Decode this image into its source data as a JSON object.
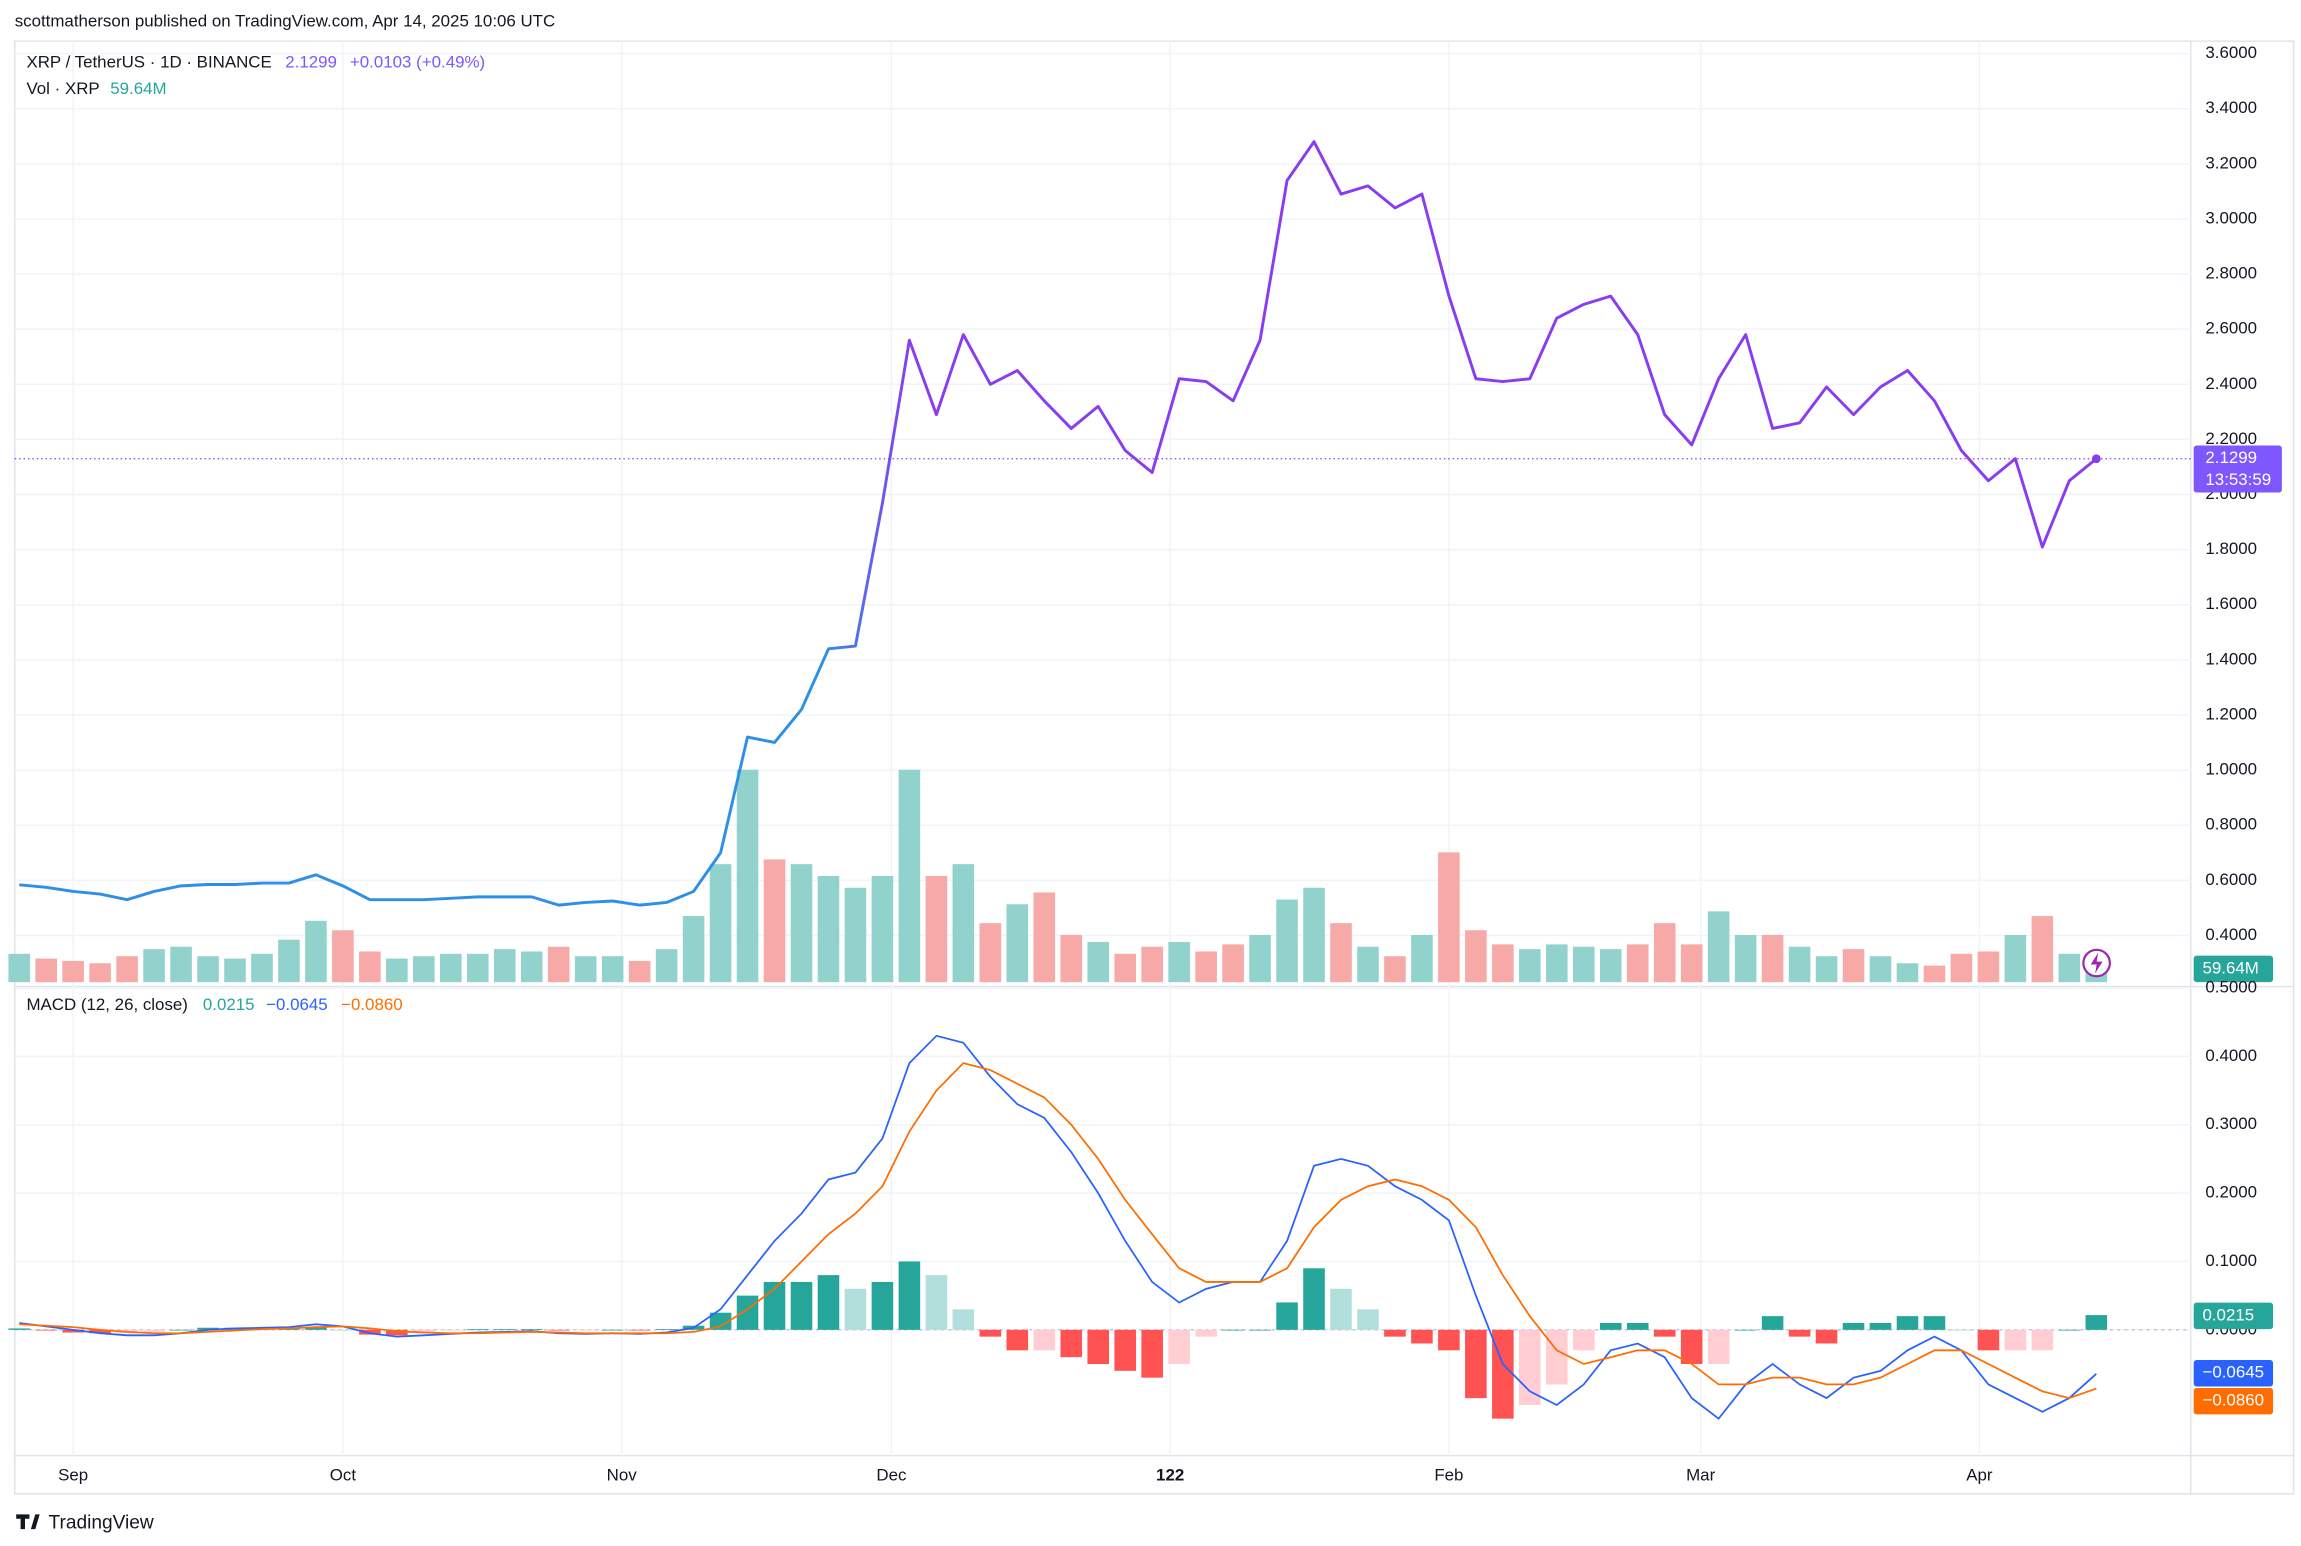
{
  "header": {
    "publisher": "scottmatherson published on TradingView.com, Apr 14, 2025 10:06 UTC"
  },
  "footer": {
    "brand": "TradingView"
  },
  "chart_data": [
    {
      "type": "line",
      "title": "XRP / TetherUS · 1D · BINANCE",
      "change": "+0.0103 (+0.49%)",
      "countdown": "13:53:59",
      "colors": [
        "#2f8fe8",
        "#8a3cf0"
      ],
      "x": [
        -6,
        -3,
        0,
        3,
        6,
        9,
        12,
        15,
        18,
        21,
        24,
        27,
        30,
        33,
        36,
        39,
        42,
        45,
        48,
        51,
        54,
        57,
        60,
        63,
        66,
        69,
        72,
        75,
        78,
        81,
        84,
        87,
        90,
        93,
        96,
        99,
        102,
        105,
        108,
        111,
        114,
        117,
        120,
        123,
        126,
        129,
        132,
        135,
        138,
        141,
        144,
        147,
        150,
        153,
        156,
        159,
        162,
        165,
        168,
        171,
        174,
        177,
        180,
        183,
        186,
        189,
        192,
        195,
        198,
        201,
        204,
        207,
        210,
        213,
        216,
        219,
        222,
        225
      ],
      "values": [
        0.584,
        0.575,
        0.56,
        0.55,
        0.53,
        0.56,
        0.58,
        0.585,
        0.585,
        0.59,
        0.59,
        0.62,
        0.58,
        0.53,
        0.53,
        0.53,
        0.535,
        0.54,
        0.54,
        0.54,
        0.51,
        0.52,
        0.525,
        0.51,
        0.52,
        0.56,
        0.7,
        1.12,
        1.1,
        1.22,
        1.44,
        1.45,
        1.97,
        2.56,
        2.29,
        2.58,
        2.4,
        2.45,
        2.34,
        2.24,
        2.32,
        2.16,
        2.08,
        2.42,
        2.41,
        2.34,
        2.56,
        3.14,
        3.28,
        3.09,
        3.12,
        3.04,
        3.09,
        2.72,
        2.42,
        2.41,
        2.42,
        2.64,
        2.69,
        2.72,
        2.58,
        2.29,
        2.18,
        2.42,
        2.58,
        2.24,
        2.26,
        2.39,
        2.29,
        2.39,
        2.45,
        2.34,
        2.16,
        2.05,
        2.13,
        1.81,
        2.05,
        2.1299
      ],
      "xlim": [
        -6.5,
        235.5
      ],
      "xticks": [
        {
          "value": 0,
          "label": "Sep"
        },
        {
          "value": 30,
          "label": "Oct"
        },
        {
          "value": 61,
          "label": "Nov"
        },
        {
          "value": 91,
          "label": "Dec"
        },
        122,
        {
          "value": 153,
          "label": "Feb"
        },
        {
          "value": 181,
          "label": "Mar"
        },
        {
          "value": 212,
          "label": "Apr"
        }
      ],
      "ylim": [
        0.22,
        3.645
      ],
      "yticks": [
        {
          "value": 0.4,
          "label": "0.4000"
        },
        {
          "value": 0.6,
          "label": "0.6000"
        },
        {
          "value": 0.8,
          "label": "0.8000"
        },
        {
          "value": 1.0,
          "label": "1.0000"
        },
        {
          "value": 1.2,
          "label": "1.2000"
        },
        {
          "value": 1.4,
          "label": "1.4000"
        },
        {
          "value": 1.6,
          "label": "1.6000"
        },
        {
          "value": 1.8,
          "label": "1.8000"
        },
        {
          "value": 2.0,
          "label": "2.0000"
        },
        {
          "value": 2.2,
          "label": "2.2000"
        },
        {
          "value": 2.4,
          "label": "2.4000"
        },
        {
          "value": 2.6,
          "label": "2.6000"
        },
        {
          "value": 2.8,
          "label": "2.8000"
        },
        {
          "value": 3.0,
          "label": "3.0000"
        },
        {
          "value": 3.2,
          "label": "3.2000"
        },
        {
          "value": 3.4,
          "label": "3.4000"
        },
        {
          "value": 3.6,
          "label": "3.6000"
        }
      ],
      "grid": true,
      "volume": {
        "name": "Vol · XRP",
        "last_label": "59.64M",
        "up_color": "#92d2cc",
        "down_color": "#f7a9a7",
        "ylim": [
          0,
          4000
        ],
        "values": [
          120,
          100,
          90,
          80,
          110,
          140,
          150,
          110,
          100,
          120,
          180,
          260,
          220,
          130,
          100,
          110,
          120,
          120,
          140,
          130,
          150,
          110,
          110,
          90,
          140,
          280,
          500,
          900,
          520,
          500,
          450,
          400,
          450,
          900,
          450,
          500,
          250,
          330,
          380,
          200,
          170,
          120,
          150,
          170,
          130,
          160,
          200,
          350,
          400,
          250,
          150,
          110,
          200,
          550,
          220,
          160,
          140,
          160,
          150,
          140,
          160,
          250,
          160,
          300,
          200,
          200,
          150,
          110,
          140,
          110,
          80,
          70,
          120,
          130,
          200,
          280,
          120,
          59.64
        ]
      }
    },
    {
      "type": "macd",
      "title": "MACD (12, 26, close)",
      "ylim": [
        -0.184,
        0.5
      ],
      "yticks": [
        {
          "value": 0,
          "label": "0.0000"
        },
        {
          "value": 0.1,
          "label": "0.1000"
        },
        {
          "value": 0.2,
          "label": "0.2000"
        },
        {
          "value": 0.3,
          "label": "0.3000"
        },
        {
          "value": 0.4,
          "label": "0.4000"
        },
        {
          "value": 0.5,
          "label": "0.5000"
        }
      ],
      "histogram": {
        "colors": [
          "#26a69a",
          "#b2dfdb",
          "#ffcdd2",
          "#ff5252"
        ],
        "values": [
          0.002,
          -0.001,
          -0.004,
          -0.005,
          -0.005,
          -0.003,
          0,
          0.003,
          0.003,
          0.002,
          0.002,
          0.004,
          0,
          -0.007,
          -0.008,
          -0.004,
          -0.001,
          0.001,
          0.001,
          0.001,
          -0.001,
          -0.001,
          0,
          -0.001,
          0.001,
          0.006,
          0.025,
          0.05,
          0.07,
          0.07,
          0.08,
          0.06,
          0.07,
          0.1,
          0.08,
          0.03,
          -0.01,
          -0.03,
          -0.03,
          -0.04,
          -0.05,
          -0.06,
          -0.07,
          -0.05,
          -0.01,
          0,
          0,
          0.04,
          0.09,
          0.06,
          0.03,
          -0.01,
          -0.02,
          -0.03,
          -0.1,
          -0.13,
          -0.11,
          -0.08,
          -0.03,
          0.01,
          0.01,
          -0.01,
          -0.05,
          -0.05,
          0,
          0.02,
          -0.01,
          -0.02,
          0.01,
          0.01,
          0.02,
          0.02,
          0,
          -0.03,
          -0.03,
          -0.03,
          0,
          0.0215
        ]
      },
      "macd": {
        "color": "#2962ff",
        "last_label": "−0.0645",
        "values": [
          0.01,
          0.005,
          0,
          -0.005,
          -0.008,
          -0.008,
          -0.005,
          0,
          0.002,
          0.003,
          0.004,
          0.008,
          0.005,
          -0.005,
          -0.01,
          -0.008,
          -0.006,
          -0.004,
          -0.003,
          -0.002,
          -0.005,
          -0.006,
          -0.005,
          -0.006,
          -0.004,
          0.003,
          0.03,
          0.08,
          0.13,
          0.17,
          0.22,
          0.23,
          0.28,
          0.39,
          0.43,
          0.42,
          0.37,
          0.33,
          0.31,
          0.26,
          0.2,
          0.13,
          0.07,
          0.04,
          0.06,
          0.07,
          0.07,
          0.13,
          0.24,
          0.25,
          0.24,
          0.21,
          0.19,
          0.16,
          0.05,
          -0.05,
          -0.09,
          -0.11,
          -0.08,
          -0.03,
          -0.02,
          -0.04,
          -0.1,
          -0.13,
          -0.08,
          -0.05,
          -0.08,
          -0.1,
          -0.07,
          -0.06,
          -0.03,
          -0.01,
          -0.03,
          -0.08,
          -0.1,
          -0.12,
          -0.1,
          -0.0645
        ]
      },
      "signal": {
        "color": "#ff6d00",
        "last_label": "−0.0860",
        "values": [
          0.008,
          0.006,
          0.004,
          0,
          -0.003,
          -0.005,
          -0.005,
          -0.003,
          -0.001,
          0.001,
          0.002,
          0.004,
          0.005,
          0.002,
          -0.002,
          -0.004,
          -0.005,
          -0.005,
          -0.004,
          -0.003,
          -0.004,
          -0.005,
          -0.005,
          -0.005,
          -0.005,
          -0.003,
          0.005,
          0.03,
          0.06,
          0.1,
          0.14,
          0.17,
          0.21,
          0.29,
          0.35,
          0.39,
          0.38,
          0.36,
          0.34,
          0.3,
          0.25,
          0.19,
          0.14,
          0.09,
          0.07,
          0.07,
          0.07,
          0.09,
          0.15,
          0.19,
          0.21,
          0.22,
          0.21,
          0.19,
          0.15,
          0.08,
          0.02,
          -0.03,
          -0.05,
          -0.04,
          -0.03,
          -0.03,
          -0.05,
          -0.08,
          -0.08,
          -0.07,
          -0.07,
          -0.08,
          -0.08,
          -0.07,
          -0.05,
          -0.03,
          -0.03,
          -0.05,
          -0.07,
          -0.09,
          -0.1,
          -0.086
        ]
      }
    }
  ]
}
